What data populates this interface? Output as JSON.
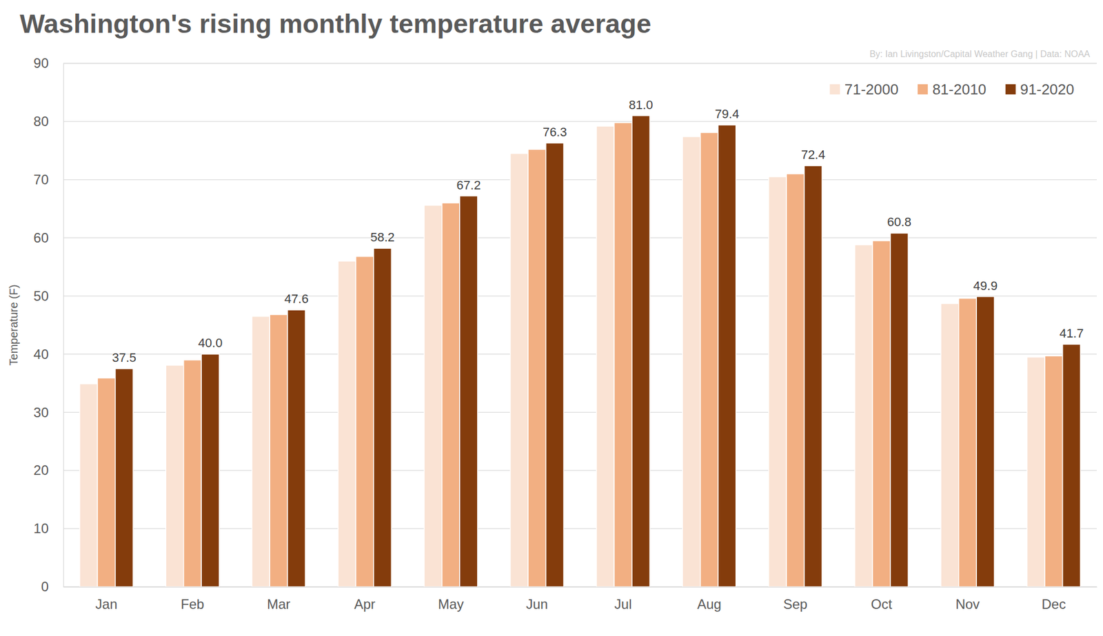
{
  "chart_data": {
    "type": "bar",
    "title": "Washington's rising monthly temperature average",
    "annotations": [
      "By: Ian Livingston/Capital Weather Gang | Data: NOAA"
    ],
    "y_label": "Temperature (F)",
    "categories": [
      "Jan",
      "Feb",
      "Mar",
      "Apr",
      "May",
      "Jun",
      "Jul",
      "Aug",
      "Sep",
      "Oct",
      "Nov",
      "Dec"
    ],
    "series": [
      {
        "name": "71-2000",
        "color": "#fae3d4",
        "values": [
          34.9,
          38.1,
          46.5,
          56.0,
          65.6,
          74.5,
          79.2,
          77.4,
          70.5,
          58.8,
          48.7,
          39.5
        ]
      },
      {
        "name": "81-2010",
        "color": "#f2af82",
        "values": [
          35.9,
          39.0,
          46.8,
          56.8,
          66.0,
          75.2,
          79.8,
          78.1,
          71.0,
          59.5,
          49.6,
          39.7
        ]
      },
      {
        "name": "91-2020",
        "color": "#843c0c",
        "data_labels": true,
        "values": [
          37.5,
          40.0,
          47.6,
          58.2,
          67.2,
          76.3,
          81.0,
          79.4,
          72.4,
          60.8,
          49.9,
          41.7
        ],
        "value_labels": [
          "37.5",
          "40.0",
          "47.6",
          "58.2",
          "67.2",
          "76.3",
          "81.0",
          "79.4",
          "72.4",
          "60.8",
          "49.9",
          "41.7"
        ]
      }
    ],
    "ylim": [
      0,
      90
    ],
    "yticks": [
      0,
      10,
      20,
      30,
      40,
      50,
      60,
      70,
      80,
      90
    ],
    "grid": true,
    "legend": "top-right"
  }
}
